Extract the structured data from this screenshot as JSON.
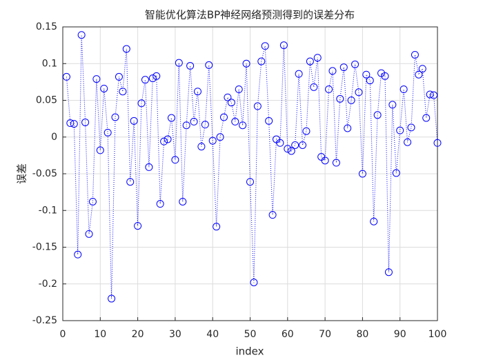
{
  "chart_data": {
    "type": "line",
    "title": "智能优化算法BP神经网络预测得到的误差分布",
    "xlabel": "index",
    "ylabel": "误差",
    "x": [
      1,
      2,
      3,
      4,
      5,
      6,
      7,
      8,
      9,
      10,
      11,
      12,
      13,
      14,
      15,
      16,
      17,
      18,
      19,
      20,
      21,
      22,
      23,
      24,
      25,
      26,
      27,
      28,
      29,
      30,
      31,
      32,
      33,
      34,
      35,
      36,
      37,
      38,
      39,
      40,
      41,
      42,
      43,
      44,
      45,
      46,
      47,
      48,
      49,
      50,
      51,
      52,
      53,
      54,
      55,
      56,
      57,
      58,
      59,
      60,
      61,
      62,
      63,
      64,
      65,
      66,
      67,
      68,
      69,
      70,
      71,
      72,
      73,
      74,
      75,
      76,
      77,
      78,
      79,
      80,
      81,
      82,
      83,
      84,
      85,
      86,
      87,
      88,
      89,
      90,
      91,
      92,
      93,
      94,
      95,
      96,
      97,
      98,
      99,
      100
    ],
    "series": [
      {
        "color": "#0000ff",
        "marker": "circle",
        "linestyle": "dotted",
        "values": [
          0.082,
          0.019,
          0.018,
          -0.16,
          0.139,
          0.02,
          -0.132,
          -0.088,
          0.079,
          -0.018,
          0.066,
          0.006,
          -0.22,
          0.027,
          0.082,
          0.062,
          0.12,
          -0.061,
          0.022,
          -0.121,
          0.046,
          0.078,
          -0.041,
          0.08,
          0.083,
          -0.091,
          -0.006,
          -0.003,
          0.026,
          -0.031,
          0.101,
          -0.088,
          0.016,
          0.097,
          0.021,
          0.062,
          -0.013,
          0.017,
          0.098,
          -0.005,
          -0.122,
          0.0,
          0.027,
          0.054,
          0.047,
          0.021,
          0.065,
          0.016,
          0.1,
          -0.061,
          -0.198,
          0.042,
          0.103,
          0.124,
          0.022,
          -0.106,
          -0.003,
          -0.008,
          0.125,
          -0.016,
          -0.019,
          -0.011,
          0.086,
          -0.011,
          0.008,
          0.103,
          0.068,
          0.108,
          -0.027,
          -0.032,
          0.065,
          0.09,
          -0.035,
          0.052,
          0.095,
          0.012,
          0.05,
          0.099,
          0.061,
          -0.05,
          0.085,
          0.077,
          -0.115,
          0.03,
          0.087,
          0.083,
          -0.184,
          0.044,
          -0.049,
          0.009,
          0.065,
          -0.007,
          0.013,
          0.112,
          0.085,
          0.093,
          0.026,
          0.058,
          0.057,
          -0.008
        ]
      }
    ],
    "xlim": [
      0,
      100
    ],
    "xticks": [
      0,
      10,
      20,
      30,
      40,
      50,
      60,
      70,
      80,
      90,
      100
    ],
    "ylim": [
      -0.25,
      0.15
    ],
    "yticks": [
      -0.25,
      -0.2,
      -0.15,
      -0.1,
      -0.05,
      0,
      0.05,
      0.1,
      0.15
    ],
    "grid": true
  }
}
